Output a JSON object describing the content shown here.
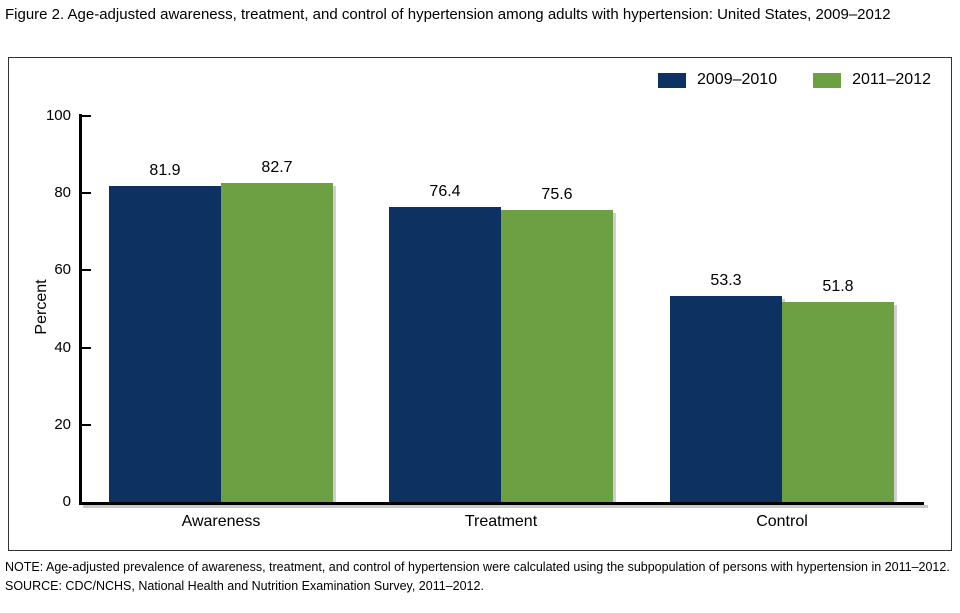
{
  "figure": {
    "title": "Figure 2. Age-adjusted awareness, treatment, and control of hypertension among adults with hypertension: United States, 2009–2012",
    "note": "NOTE: Age-adjusted prevalence of awareness, treatment, and control of hypertension were calculated using the subpopulation of persons with hypertension in 2011–2012.",
    "source": "SOURCE: CDC/NCHS, National Health and Nutrition Examination Survey, 2011–2012."
  },
  "chart_data": {
    "type": "bar",
    "title": "Age-adjusted awareness, treatment, and control of hypertension among adults with hypertension: United States, 2009–2012",
    "categories": [
      "Awareness",
      "Treatment",
      "Control"
    ],
    "series": [
      {
        "name": "2009–2010",
        "color": "#0d3161",
        "values": [
          81.9,
          76.4,
          53.3
        ]
      },
      {
        "name": "2011–2012",
        "color": "#6ca042",
        "values": [
          82.7,
          75.6,
          51.8
        ]
      }
    ],
    "xlabel": "",
    "ylabel": "Percent",
    "ylim": [
      0,
      100
    ],
    "yticks": [
      0,
      20,
      40,
      60,
      80,
      100
    ],
    "grid": false,
    "legend_position": "top-right",
    "value_labels": true
  }
}
